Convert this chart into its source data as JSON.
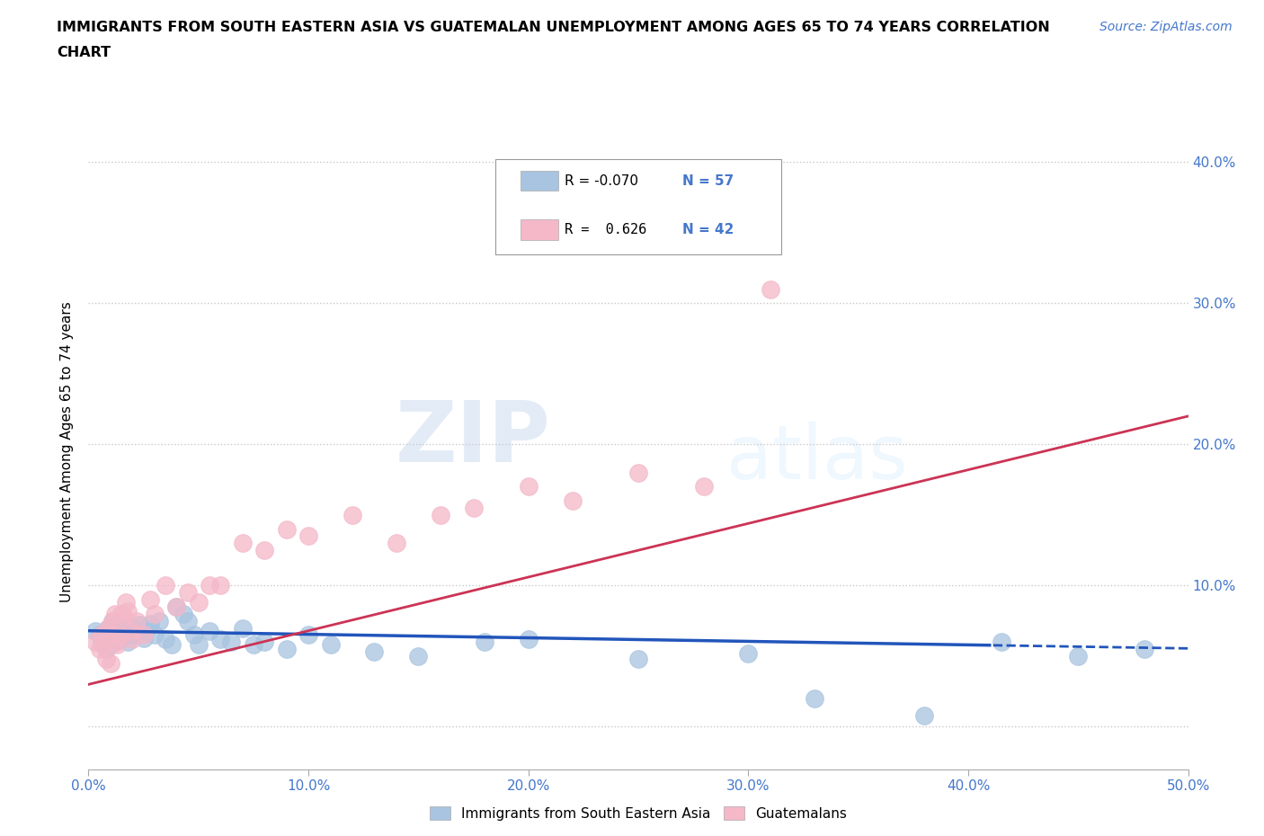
{
  "title_line1": "IMMIGRANTS FROM SOUTH EASTERN ASIA VS GUATEMALAN UNEMPLOYMENT AMONG AGES 65 TO 74 YEARS CORRELATION",
  "title_line2": "CHART",
  "source": "Source: ZipAtlas.com",
  "ylabel": "Unemployment Among Ages 65 to 74 years",
  "xlim": [
    0.0,
    0.5
  ],
  "ylim": [
    -0.03,
    0.42
  ],
  "xticks": [
    0.0,
    0.1,
    0.2,
    0.3,
    0.4,
    0.5
  ],
  "yticks": [
    0.0,
    0.1,
    0.2,
    0.3,
    0.4
  ],
  "grid_color": "#c8c8c8",
  "background_color": "#ffffff",
  "blue_color": "#a8c4e0",
  "pink_color": "#f4b8c8",
  "blue_line_color": "#2255bb",
  "pink_line_color": "#cc3355",
  "axis_tick_color": "#4477cc",
  "blue_scatter": {
    "x": [
      0.003,
      0.005,
      0.006,
      0.007,
      0.008,
      0.009,
      0.01,
      0.01,
      0.01,
      0.011,
      0.012,
      0.012,
      0.013,
      0.013,
      0.014,
      0.015,
      0.015,
      0.016,
      0.017,
      0.018,
      0.019,
      0.02,
      0.021,
      0.022,
      0.023,
      0.025,
      0.026,
      0.028,
      0.03,
      0.032,
      0.035,
      0.038,
      0.04,
      0.043,
      0.045,
      0.048,
      0.05,
      0.055,
      0.06,
      0.065,
      0.07,
      0.075,
      0.08,
      0.09,
      0.1,
      0.11,
      0.13,
      0.15,
      0.18,
      0.2,
      0.25,
      0.3,
      0.33,
      0.38,
      0.415,
      0.45,
      0.48
    ],
    "y": [
      0.068,
      0.065,
      0.06,
      0.058,
      0.055,
      0.07,
      0.065,
      0.062,
      0.058,
      0.075,
      0.068,
      0.06,
      0.072,
      0.065,
      0.068,
      0.07,
      0.063,
      0.072,
      0.065,
      0.06,
      0.068,
      0.065,
      0.07,
      0.067,
      0.072,
      0.063,
      0.068,
      0.073,
      0.065,
      0.075,
      0.062,
      0.058,
      0.085,
      0.08,
      0.075,
      0.065,
      0.058,
      0.068,
      0.062,
      0.06,
      0.07,
      0.058,
      0.06,
      0.055,
      0.065,
      0.058,
      0.053,
      0.05,
      0.06,
      0.062,
      0.048,
      0.052,
      0.02,
      0.008,
      0.06,
      0.05,
      0.055
    ]
  },
  "pink_scatter": {
    "x": [
      0.003,
      0.005,
      0.006,
      0.007,
      0.008,
      0.009,
      0.01,
      0.01,
      0.011,
      0.012,
      0.012,
      0.013,
      0.014,
      0.015,
      0.016,
      0.017,
      0.018,
      0.019,
      0.02,
      0.022,
      0.025,
      0.028,
      0.03,
      0.035,
      0.04,
      0.045,
      0.05,
      0.055,
      0.06,
      0.07,
      0.08,
      0.09,
      0.1,
      0.12,
      0.14,
      0.16,
      0.175,
      0.2,
      0.22,
      0.25,
      0.28,
      0.31
    ],
    "y": [
      0.06,
      0.055,
      0.065,
      0.058,
      0.048,
      0.07,
      0.065,
      0.045,
      0.075,
      0.06,
      0.08,
      0.058,
      0.065,
      0.08,
      0.078,
      0.088,
      0.082,
      0.068,
      0.062,
      0.075,
      0.065,
      0.09,
      0.08,
      0.1,
      0.085,
      0.095,
      0.088,
      0.1,
      0.1,
      0.13,
      0.125,
      0.14,
      0.135,
      0.15,
      0.13,
      0.15,
      0.155,
      0.17,
      0.16,
      0.18,
      0.17,
      0.31
    ]
  },
  "blue_r": -0.07,
  "blue_n": 57,
  "pink_r": 0.626,
  "pink_n": 42,
  "blue_line_intercept": 0.068,
  "blue_line_slope": -0.025,
  "pink_line_intercept": 0.03,
  "pink_line_slope": 0.38
}
